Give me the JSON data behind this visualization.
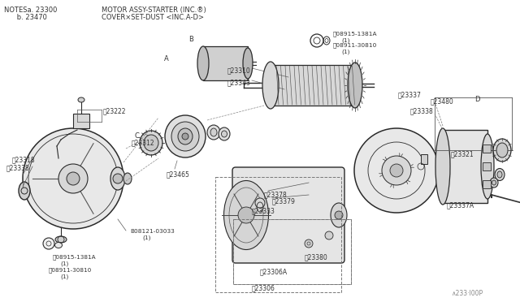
{
  "bg_color": "#f5f5f5",
  "line_color": "#2a2a2a",
  "gray_fill": "#c8c8c8",
  "light_fill": "#e8e8e8",
  "mid_gray": "#888888",
  "label_color": "#555555",
  "fig_width": 6.4,
  "fig_height": 3.72,
  "dpi": 100,
  "notes1": "NOTESa. 23300",
  "notes2": "      b. 23470",
  "title1": "MOTOR ASSY-STARTER (INC.®)",
  "title2": "COVER×SET-DUST <INC.A-D>",
  "bottom_ref": "∧233·l00P"
}
